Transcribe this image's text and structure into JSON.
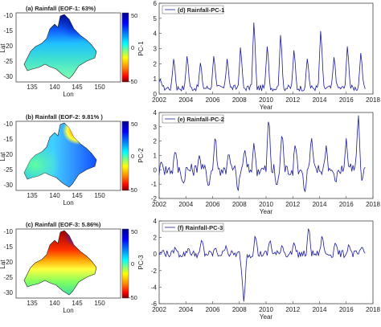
{
  "chart_data": [
    {
      "type": "heatmap",
      "title": "(a) Rainfall (EOF-1: 63%)",
      "xlabel": "Lon",
      "ylabel": "Lat",
      "xticks": [
        "135",
        "140",
        "145",
        "150"
      ],
      "yticks": [
        "-10",
        "-15",
        "-20",
        "-25",
        "-30"
      ],
      "xlim": [
        131,
        154
      ],
      "ylim": [
        -33,
        -9
      ],
      "colorbar": {
        "ticks": [
          "50",
          "0",
          "-50"
        ],
        "range": [
          -50,
          50
        ]
      },
      "colors": {
        "low": "#c00000",
        "mid": "#ffff40",
        "high": "#00008f"
      }
    },
    {
      "type": "heatmap",
      "title": "(b) Rainfall (EOF-2: 9.81% )",
      "xlabel": "Lon",
      "ylabel": "Lat",
      "xticks": [
        "135",
        "140",
        "145",
        "150"
      ],
      "yticks": [
        "-10",
        "-15",
        "-20",
        "-25",
        "-30"
      ],
      "xlim": [
        131,
        154
      ],
      "ylim": [
        -33,
        -9
      ],
      "colorbar": {
        "ticks": [
          "50",
          "0",
          "-50"
        ],
        "range": [
          -50,
          50
        ]
      }
    },
    {
      "type": "heatmap",
      "title": "(c) Rainfall (EOF-3: 5.86%)",
      "xlabel": "Lon",
      "ylabel": "Lat",
      "xticks": [
        "135",
        "140",
        "145",
        "150"
      ],
      "yticks": [
        "-10",
        "-15",
        "-20",
        "-25",
        "-30"
      ],
      "xlim": [
        131,
        154
      ],
      "ylim": [
        -33,
        -9
      ],
      "colorbar": {
        "ticks": [
          "50",
          "0",
          "-50"
        ],
        "range": [
          -50,
          50
        ]
      }
    },
    {
      "type": "line",
      "legend": "(d) Rainfall-PC-1",
      "legend_position": "top-left",
      "xlabel": "Year",
      "ylabel": "PC-1",
      "xlim": [
        2002,
        2018
      ],
      "ylim": [
        0,
        6
      ],
      "xticks": [
        "2002",
        "2004",
        "2006",
        "2008",
        "2010",
        "2012",
        "2014",
        "2016",
        "2018"
      ],
      "yticks": [
        "0",
        "1",
        "2",
        "3",
        "4",
        "5",
        "6"
      ],
      "peaks": [
        {
          "x": 2002.1,
          "y": 1.0
        },
        {
          "x": 2003.1,
          "y": 2.5
        },
        {
          "x": 2004.1,
          "y": 2.7
        },
        {
          "x": 2005.1,
          "y": 2.2
        },
        {
          "x": 2006.1,
          "y": 2.7
        },
        {
          "x": 2007.1,
          "y": 2.5
        },
        {
          "x": 2008.1,
          "y": 3.3
        },
        {
          "x": 2009.1,
          "y": 5.1
        },
        {
          "x": 2010.1,
          "y": 3.4
        },
        {
          "x": 2011.1,
          "y": 4.2
        },
        {
          "x": 2012.1,
          "y": 3.1
        },
        {
          "x": 2013.1,
          "y": 2.5
        },
        {
          "x": 2014.1,
          "y": 4.5
        },
        {
          "x": 2015.1,
          "y": 2.6
        },
        {
          "x": 2016.1,
          "y": 3.4
        },
        {
          "x": 2017.1,
          "y": 2.9
        }
      ],
      "color": "#1a1a9c"
    },
    {
      "type": "line",
      "legend": "(e) Rainfall-PC-2",
      "legend_position": "top-left",
      "xlabel": "Year",
      "ylabel": "PC-2",
      "xlim": [
        2002,
        2018
      ],
      "ylim": [
        -2,
        4
      ],
      "xticks": [
        "2002",
        "2004",
        "2006",
        "2008",
        "2010",
        "2012",
        "2014",
        "2016",
        "2018"
      ],
      "yticks": [
        "-2",
        "-1",
        "0",
        "1",
        "2",
        "3",
        "4"
      ],
      "peaks": [
        {
          "x": 2002.2,
          "y": 0.6
        },
        {
          "x": 2003.2,
          "y": 1.5
        },
        {
          "x": 2003.8,
          "y": -1.1
        },
        {
          "x": 2005.0,
          "y": 1.0
        },
        {
          "x": 2005.7,
          "y": -1.3
        },
        {
          "x": 2006.2,
          "y": 2.6
        },
        {
          "x": 2007.2,
          "y": 1.3
        },
        {
          "x": 2007.9,
          "y": -1.6
        },
        {
          "x": 2008.4,
          "y": 1.5
        },
        {
          "x": 2009.1,
          "y": 2.0
        },
        {
          "x": 2010.2,
          "y": 4.0
        },
        {
          "x": 2010.8,
          "y": -1.3
        },
        {
          "x": 2011.2,
          "y": 2.8
        },
        {
          "x": 2012.2,
          "y": 2.0
        },
        {
          "x": 2012.9,
          "y": -1.7
        },
        {
          "x": 2013.4,
          "y": 2.4
        },
        {
          "x": 2014.5,
          "y": 1.7
        },
        {
          "x": 2015.2,
          "y": -1.0
        },
        {
          "x": 2016.0,
          "y": 2.2
        },
        {
          "x": 2016.9,
          "y": 4.1
        },
        {
          "x": 2017.2,
          "y": -0.9
        },
        {
          "x": 2017.4,
          "y": 0.2
        }
      ],
      "color": "#1a1a9c"
    },
    {
      "type": "line",
      "legend": "(f) Rainfall-PC-3",
      "legend_position": "top-left",
      "xlabel": "Year",
      "ylabel": "PC-3",
      "xlim": [
        2002,
        2018
      ],
      "ylim": [
        -6,
        4
      ],
      "xticks": [
        "2002",
        "2004",
        "2006",
        "2008",
        "2010",
        "2012",
        "2014",
        "2016",
        "2018"
      ],
      "yticks": [
        "-6",
        "-4",
        "-2",
        "0",
        "2",
        "4"
      ],
      "peaks": [
        {
          "x": 2002.3,
          "y": 0.5
        },
        {
          "x": 2003.2,
          "y": 0.9
        },
        {
          "x": 2004.2,
          "y": 0.8
        },
        {
          "x": 2005.2,
          "y": 1.9
        },
        {
          "x": 2006.2,
          "y": 0.8
        },
        {
          "x": 2007.0,
          "y": 1.0
        },
        {
          "x": 2008.2,
          "y": -2.2
        },
        {
          "x": 2008.35,
          "y": -6.2
        },
        {
          "x": 2009.2,
          "y": 2.5
        },
        {
          "x": 2010.3,
          "y": 1.9
        },
        {
          "x": 2011.2,
          "y": 1.2
        },
        {
          "x": 2012.1,
          "y": 1.5
        },
        {
          "x": 2013.2,
          "y": 3.6
        },
        {
          "x": 2014.2,
          "y": 2.5
        },
        {
          "x": 2015.2,
          "y": 1.6
        },
        {
          "x": 2016.2,
          "y": 1.3
        },
        {
          "x": 2017.2,
          "y": 0.9
        }
      ],
      "color": "#1a1a9c"
    }
  ]
}
